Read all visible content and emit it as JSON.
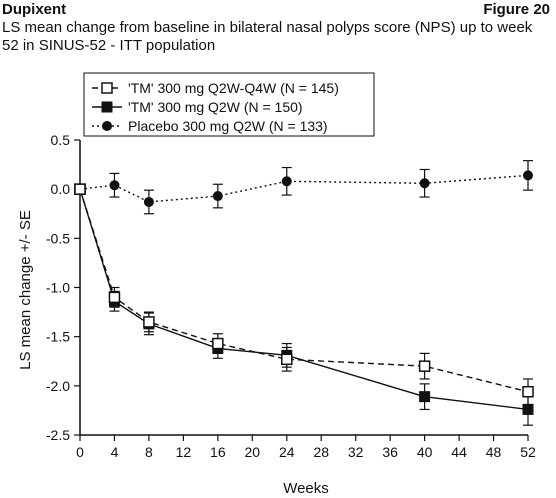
{
  "header": {
    "brand": "Dupixent",
    "figure_label": "Figure 20",
    "subtitle": "LS mean change from baseline in bilateral nasal polyps score (NPS) up to week 52 in SINUS-52 - ITT population"
  },
  "chart_data": {
    "type": "line",
    "title": "",
    "xlabel": "Weeks",
    "ylabel": "LS mean change +/- SE",
    "xlim": [
      0,
      52
    ],
    "ylim": [
      -2.5,
      0.5
    ],
    "xticks": [
      0,
      4,
      8,
      12,
      16,
      20,
      24,
      28,
      32,
      36,
      40,
      44,
      48,
      52
    ],
    "yticks": [
      0.5,
      0.0,
      -0.5,
      -1.0,
      -1.5,
      -2.0,
      -2.5
    ],
    "ytick_labels": [
      "0.5",
      "0.0",
      "-0.5",
      "-1.0",
      "-1.5",
      "-2.0",
      "-2.5"
    ],
    "grid": false,
    "legend_position": "top-left",
    "series": [
      {
        "name": "'TM' 300 mg Q2W-Q4W (N = 145)",
        "line_style": "dashed",
        "marker": "open-square",
        "x": [
          0,
          4,
          8,
          16,
          24,
          40,
          52
        ],
        "values": [
          0.0,
          -1.1,
          -1.35,
          -1.57,
          -1.73,
          -1.8,
          -2.06
        ],
        "se": [
          0.0,
          0.1,
          0.1,
          0.1,
          0.12,
          0.13,
          0.13
        ]
      },
      {
        "name": "'TM' 300 mg Q2W (N = 150)",
        "line_style": "solid",
        "marker": "filled-square",
        "x": [
          0,
          4,
          8,
          16,
          24,
          40,
          52
        ],
        "values": [
          0.0,
          -1.14,
          -1.37,
          -1.62,
          -1.69,
          -2.11,
          -2.24
        ],
        "se": [
          0.0,
          0.1,
          0.11,
          0.1,
          0.12,
          0.13,
          0.16
        ]
      },
      {
        "name": "Placebo 300 mg Q2W (N = 133)",
        "line_style": "dotted",
        "marker": "filled-circle",
        "x": [
          0,
          4,
          8,
          16,
          24,
          40,
          52
        ],
        "values": [
          0.0,
          0.04,
          -0.13,
          -0.07,
          0.08,
          0.06,
          0.14
        ],
        "se": [
          0.0,
          0.12,
          0.12,
          0.12,
          0.14,
          0.14,
          0.15
        ]
      }
    ]
  }
}
